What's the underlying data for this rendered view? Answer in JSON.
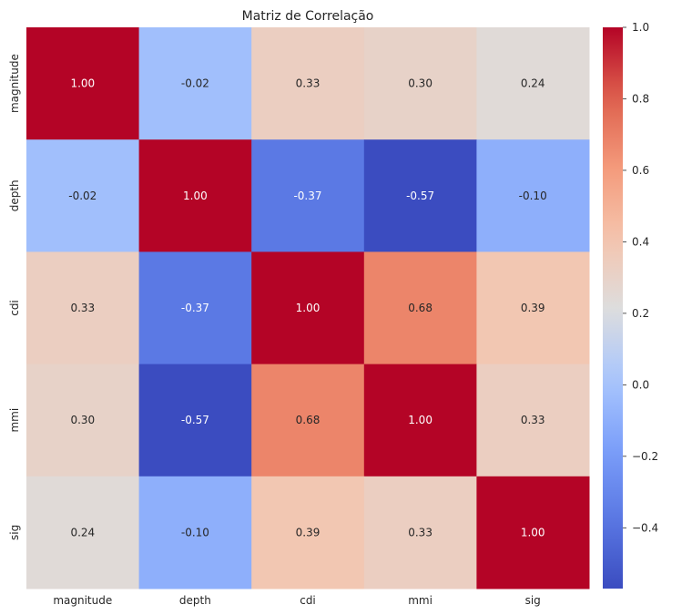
{
  "chart_data": {
    "type": "heatmap",
    "title": "Matriz de Correlação",
    "colormap": "coolwarm",
    "rows": [
      "magnitude",
      "depth",
      "cdi",
      "mmi",
      "sig"
    ],
    "columns": [
      "magnitude",
      "depth",
      "cdi",
      "mmi",
      "sig"
    ],
    "values": [
      [
        1.0,
        -0.02,
        0.33,
        0.3,
        0.24
      ],
      [
        -0.02,
        1.0,
        -0.37,
        -0.57,
        -0.1
      ],
      [
        0.33,
        -0.37,
        1.0,
        0.68,
        0.39
      ],
      [
        0.3,
        -0.57,
        0.68,
        1.0,
        0.33
      ],
      [
        0.24,
        -0.1,
        0.39,
        0.33,
        1.0
      ]
    ],
    "value_format": "0.00",
    "color_range": [
      -0.57,
      1.0
    ],
    "colorbar_ticks": [
      1.0,
      0.8,
      0.6,
      0.4,
      0.2,
      0.0,
      -0.2,
      -0.4
    ],
    "colorbar_tick_labels": [
      "1.0",
      "0.8",
      "0.6",
      "0.4",
      "0.2",
      "0.0",
      "−0.2",
      "−0.4"
    ],
    "grid": false
  }
}
